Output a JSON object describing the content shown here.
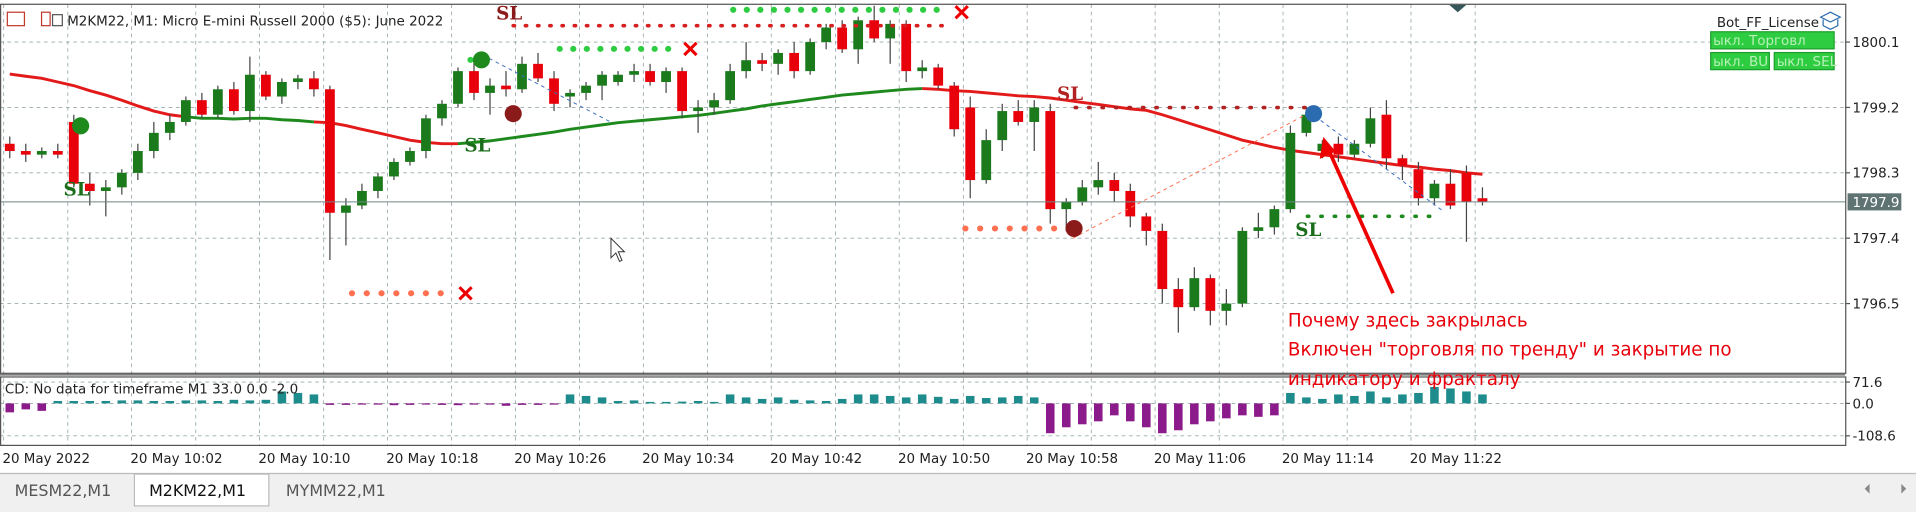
{
  "window": {
    "tabs": [
      "MESM22,M1",
      "M2KM22,M1",
      "MYMM22,M1"
    ],
    "bot": {
      "title": "Bot_FF_License",
      "buttons": [
        "ыкл. Торговл",
        "ыкл. BU",
        "ыкл. SEL"
      ]
    }
  },
  "chart_data": {
    "type": "candlestick",
    "title": "M2KM22, M1:  Micro E-mini Russell 2000 ($5): June 2022",
    "up_color": "#1b7a1b",
    "down_color": "#e8000b",
    "ylim": [
      1795.54,
      1800.62
    ],
    "yticks": [
      1796.5,
      1797.4,
      1798.3,
      1799.2,
      1800.1
    ],
    "grid": true,
    "last_price": 1797.9,
    "candles": [
      [
        1798.7,
        1798.8,
        1798.5,
        1798.6
      ],
      [
        1798.6,
        1798.7,
        1798.45,
        1798.55
      ],
      [
        1798.55,
        1798.65,
        1798.5,
        1798.6
      ],
      [
        1798.6,
        1798.7,
        1798.5,
        1798.55
      ],
      [
        1799.0,
        1799.1,
        1798.1,
        1798.15
      ],
      [
        1798.15,
        1798.3,
        1797.85,
        1798.05
      ],
      [
        1798.05,
        1798.2,
        1797.7,
        1798.1
      ],
      [
        1798.1,
        1798.35,
        1798.0,
        1798.3
      ],
      [
        1798.3,
        1798.7,
        1798.2,
        1798.6
      ],
      [
        1798.6,
        1799.0,
        1798.5,
        1798.85
      ],
      [
        1798.85,
        1799.1,
        1798.75,
        1799.0
      ],
      [
        1799.0,
        1799.35,
        1798.95,
        1799.3
      ],
      [
        1799.3,
        1799.4,
        1799.05,
        1799.1
      ],
      [
        1799.1,
        1799.5,
        1799.05,
        1799.45
      ],
      [
        1799.45,
        1799.55,
        1799.1,
        1799.15
      ],
      [
        1799.15,
        1799.9,
        1799.0,
        1799.65
      ],
      [
        1799.65,
        1799.7,
        1799.3,
        1799.35
      ],
      [
        1799.35,
        1799.6,
        1799.25,
        1799.55
      ],
      [
        1799.55,
        1799.65,
        1799.45,
        1799.6
      ],
      [
        1799.6,
        1799.7,
        1799.35,
        1799.45
      ],
      [
        1799.45,
        1799.5,
        1797.1,
        1797.75
      ],
      [
        1797.75,
        1797.95,
        1797.3,
        1797.85
      ],
      [
        1797.85,
        1798.15,
        1797.8,
        1798.05
      ],
      [
        1798.05,
        1798.3,
        1797.95,
        1798.25
      ],
      [
        1798.25,
        1798.5,
        1798.2,
        1798.45
      ],
      [
        1798.45,
        1798.65,
        1798.4,
        1798.6
      ],
      [
        1798.6,
        1799.1,
        1798.5,
        1799.05
      ],
      [
        1799.05,
        1799.3,
        1798.95,
        1799.25
      ],
      [
        1799.25,
        1799.75,
        1799.2,
        1799.7
      ],
      [
        1799.7,
        1799.85,
        1799.3,
        1799.4
      ],
      [
        1799.4,
        1799.6,
        1799.1,
        1799.5
      ],
      [
        1799.5,
        1799.7,
        1799.35,
        1799.45
      ],
      [
        1799.45,
        1799.9,
        1799.4,
        1799.8
      ],
      [
        1799.8,
        1799.95,
        1799.55,
        1799.6
      ],
      [
        1799.6,
        1799.7,
        1799.15,
        1799.25
      ],
      [
        1799.35,
        1799.45,
        1799.2,
        1799.4
      ],
      [
        1799.4,
        1799.55,
        1799.3,
        1799.5
      ],
      [
        1799.5,
        1799.7,
        1799.3,
        1799.65
      ],
      [
        1799.55,
        1799.7,
        1799.5,
        1799.65
      ],
      [
        1799.65,
        1799.8,
        1799.55,
        1799.7
      ],
      [
        1799.7,
        1799.8,
        1799.5,
        1799.55
      ],
      [
        1799.55,
        1799.75,
        1799.4,
        1799.7
      ],
      [
        1799.7,
        1799.75,
        1799.05,
        1799.15
      ],
      [
        1799.15,
        1799.3,
        1798.85,
        1799.2
      ],
      [
        1799.2,
        1799.4,
        1799.1,
        1799.3
      ],
      [
        1799.3,
        1799.8,
        1799.25,
        1799.7
      ],
      [
        1799.7,
        1800.1,
        1799.6,
        1799.85
      ],
      [
        1799.85,
        1799.95,
        1799.7,
        1799.8
      ],
      [
        1799.8,
        1800.0,
        1799.65,
        1799.95
      ],
      [
        1799.95,
        1800.1,
        1799.6,
        1799.7
      ],
      [
        1799.7,
        1800.15,
        1799.65,
        1800.1
      ],
      [
        1800.1,
        1800.35,
        1800.0,
        1800.3
      ],
      [
        1800.3,
        1800.4,
        1799.95,
        1800.0
      ],
      [
        1800.0,
        1800.45,
        1799.8,
        1800.4
      ],
      [
        1800.4,
        1800.6,
        1800.1,
        1800.15
      ],
      [
        1800.15,
        1800.4,
        1799.8,
        1800.35
      ],
      [
        1800.35,
        1800.4,
        1799.55,
        1799.7
      ],
      [
        1799.7,
        1799.85,
        1799.6,
        1799.75
      ],
      [
        1799.75,
        1799.8,
        1799.45,
        1799.5
      ],
      [
        1799.5,
        1799.55,
        1798.8,
        1798.9
      ],
      [
        1799.2,
        1799.35,
        1797.95,
        1798.2
      ],
      [
        1798.2,
        1798.9,
        1798.15,
        1798.75
      ],
      [
        1798.75,
        1799.25,
        1798.6,
        1799.15
      ],
      [
        1799.15,
        1799.3,
        1798.95,
        1799.0
      ],
      [
        1799.0,
        1799.3,
        1798.6,
        1799.2
      ],
      [
        1799.15,
        1799.25,
        1797.6,
        1797.8
      ],
      [
        1797.8,
        1797.95,
        1797.5,
        1797.9
      ],
      [
        1797.9,
        1798.2,
        1797.85,
        1798.1
      ],
      [
        1798.1,
        1798.45,
        1798.0,
        1798.2
      ],
      [
        1798.2,
        1798.3,
        1797.9,
        1798.05
      ],
      [
        1798.05,
        1798.15,
        1797.55,
        1797.7
      ],
      [
        1797.7,
        1797.75,
        1797.3,
        1797.5
      ],
      [
        1797.5,
        1797.6,
        1796.5,
        1796.7
      ],
      [
        1796.7,
        1796.85,
        1796.1,
        1796.45
      ],
      [
        1796.45,
        1797.0,
        1796.4,
        1796.85
      ],
      [
        1796.85,
        1796.9,
        1796.2,
        1796.4
      ],
      [
        1796.4,
        1796.7,
        1796.2,
        1796.5
      ],
      [
        1796.5,
        1797.55,
        1796.45,
        1797.5
      ],
      [
        1797.5,
        1797.75,
        1797.4,
        1797.55
      ],
      [
        1797.55,
        1797.85,
        1797.45,
        1797.8
      ],
      [
        1797.8,
        1798.95,
        1797.75,
        1798.85
      ],
      [
        1798.85,
        1799.2,
        1798.8,
        1799.1
      ],
      [
        1798.6,
        1798.75,
        1798.5,
        1798.7
      ],
      [
        1798.7,
        1798.8,
        1798.45,
        1798.55
      ],
      [
        1798.55,
        1798.75,
        1798.5,
        1798.7
      ],
      [
        1798.7,
        1799.2,
        1798.65,
        1799.05
      ],
      [
        1799.1,
        1799.3,
        1798.35,
        1798.5
      ],
      [
        1798.5,
        1798.55,
        1798.2,
        1798.4
      ],
      [
        1798.35,
        1798.45,
        1797.85,
        1797.95
      ],
      [
        1797.95,
        1798.2,
        1797.85,
        1798.15
      ],
      [
        1798.15,
        1798.35,
        1797.8,
        1797.85
      ],
      [
        1798.3,
        1798.4,
        1797.35,
        1797.9
      ],
      [
        1797.95,
        1798.1,
        1797.85,
        1797.9
      ]
    ],
    "lines": [
      {
        "color": "#e31a1a",
        "values": [
          1799.66,
          1799.63,
          1799.6,
          1799.55,
          1799.5,
          1799.43,
          1799.37,
          1799.3,
          1799.22,
          1799.15,
          1799.1,
          1799.07,
          null,
          null,
          null,
          null,
          null,
          null,
          null,
          1799.0,
          1798.99,
          1798.95,
          1798.9,
          1798.85,
          1798.8,
          1798.75,
          1798.72,
          1798.7,
          1798.7,
          null,
          null,
          null,
          null,
          null,
          null,
          null,
          null,
          null,
          null,
          null,
          null,
          null,
          null,
          null,
          null,
          null,
          null,
          null,
          null,
          null,
          null,
          null,
          null,
          null,
          null,
          null,
          null,
          1799.46,
          1799.45,
          1799.43,
          1799.42,
          1799.4,
          1799.38,
          1799.36,
          1799.35,
          1799.33,
          1799.3,
          1799.27,
          1799.24,
          1799.21,
          1799.18,
          1799.16,
          1799.1,
          1799.03,
          1798.96,
          1798.89,
          1798.82,
          1798.75,
          1798.7,
          1798.65,
          1798.61,
          1798.58,
          1798.55,
          1798.52,
          1798.49,
          1798.46,
          1798.43,
          1798.4,
          1798.38,
          1798.35,
          1798.33,
          1798.3,
          1798.28
        ]
      },
      {
        "color": "#1e8a1e",
        "values": [
          null,
          null,
          null,
          null,
          null,
          null,
          null,
          null,
          null,
          null,
          null,
          1799.07,
          1799.05,
          1799.05,
          1799.04,
          1799.05,
          1799.05,
          1799.03,
          1799.02,
          1799.0,
          null,
          null,
          null,
          null,
          null,
          null,
          null,
          null,
          1798.7,
          1798.72,
          1798.74,
          1798.77,
          1798.8,
          1798.83,
          1798.86,
          1798.9,
          1798.93,
          1798.96,
          1798.99,
          1799.01,
          1799.03,
          1799.05,
          1799.07,
          1799.09,
          1799.12,
          1799.15,
          1799.18,
          1799.22,
          1799.25,
          1799.28,
          1799.31,
          1799.34,
          1799.37,
          1799.39,
          1799.41,
          1799.43,
          1799.45,
          1799.46,
          null,
          null,
          null,
          null,
          null,
          null,
          null,
          null,
          null,
          null,
          null,
          null,
          null,
          null,
          null,
          null,
          null,
          null,
          null,
          null,
          null,
          null,
          null,
          null,
          null,
          null,
          null,
          null,
          null,
          null,
          null,
          null,
          null,
          null,
          null
        ]
      }
    ],
    "time_labels": [
      "20 May 2022",
      "20 May 10:02",
      "20 May 10:10",
      "20 May 10:18",
      "20 May 10:26",
      "20 May 10:34",
      "20 May 10:42",
      "20 May 10:50",
      "20 May 10:58",
      "20 May 11:06",
      "20 May 11:14",
      "20 May 11:22"
    ],
    "markers": [
      "SL",
      "SL",
      "SL",
      "SL",
      "SL"
    ],
    "annotation": [
      "Почему здесь закрылась",
      "Включен \"торговля по тренду\" и закрытие по",
      "индикатору и фракталу"
    ],
    "indicator": {
      "label": "CD: No data for timeframe M1 33.0 0.0 -2.0",
      "pos_color": "#1e8c8c",
      "neg_color": "#8b1a8b",
      "ylim": [
        -140.7,
        88.5
      ],
      "yticks": [
        71.6,
        {
          "value": 0,
          "label": "0.0"
        },
        -108.6
      ],
      "values": [
        -30,
        -20,
        -25,
        8,
        8,
        8,
        8,
        10,
        10,
        8,
        8,
        10,
        10,
        8,
        12,
        10,
        12,
        40,
        35,
        30,
        -5,
        -5,
        -3,
        -4,
        -6,
        -5,
        -3,
        -5,
        -6,
        -4,
        -3,
        -8,
        -5,
        -5,
        -4,
        30,
        25,
        20,
        8,
        10,
        5,
        5,
        6,
        8,
        5,
        30,
        20,
        15,
        20,
        12,
        10,
        8,
        15,
        30,
        30,
        25,
        20,
        30,
        22,
        15,
        25,
        18,
        20,
        25,
        20,
        -100,
        -80,
        -70,
        -60,
        -40,
        -60,
        -80,
        -100,
        -90,
        -70,
        -60,
        -50,
        -40,
        -45,
        -40,
        35,
        20,
        15,
        30,
        25,
        40,
        20,
        30,
        35,
        55,
        50,
        40,
        30
      ]
    }
  }
}
